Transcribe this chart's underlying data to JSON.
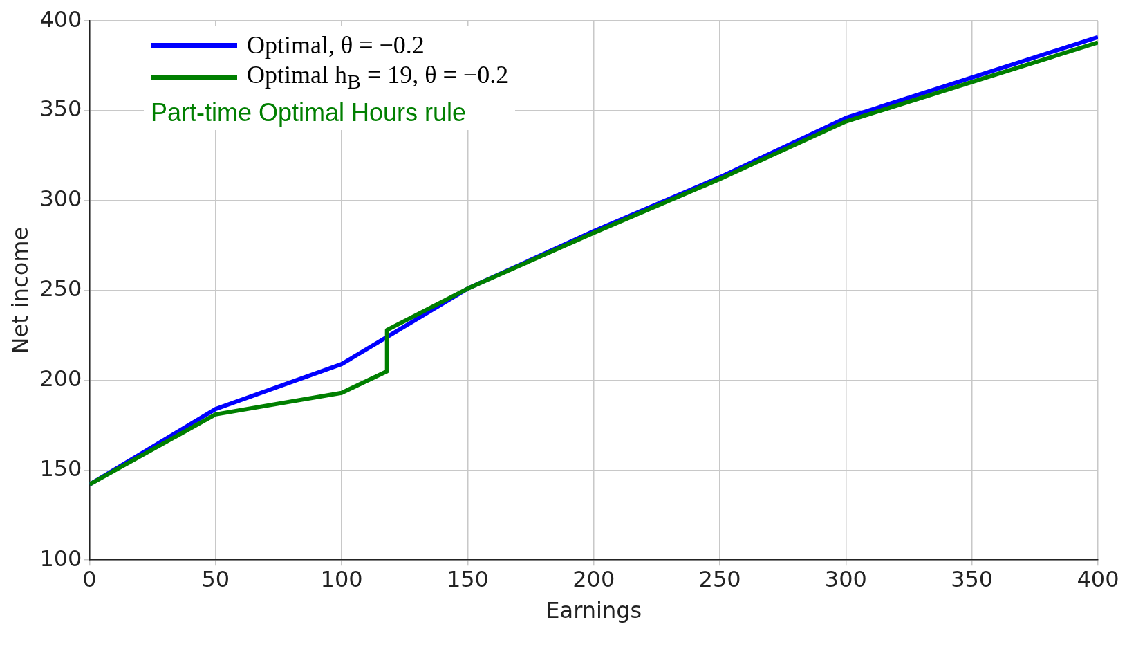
{
  "chart_data": {
    "type": "line",
    "xlabel": "Earnings",
    "ylabel": "Net income",
    "xlim": [
      0,
      400
    ],
    "xticks": [
      0,
      50,
      100,
      150,
      200,
      250,
      300,
      350,
      400
    ],
    "ylim": [
      100,
      400
    ],
    "yticks": [
      100,
      150,
      200,
      250,
      300,
      350,
      400
    ],
    "grid": true,
    "legend": "top left",
    "marker": "none",
    "line_style": "solid",
    "annotations": [
      "Part-time Optimal Hours rule"
    ],
    "series": [
      {
        "name": "Optimal, θ = −0.2",
        "color": "#0000ff",
        "x": [
          0,
          50,
          100,
          150,
          200,
          250,
          300,
          400
        ],
        "values": [
          142,
          184,
          209,
          251,
          283,
          313,
          346,
          391
        ]
      },
      {
        "name": "Optimal h$_{B}$ = 19, θ = −0.2",
        "color": "#007f00",
        "x": [
          0,
          50,
          100,
          118,
          118,
          150,
          200,
          250,
          300,
          400
        ],
        "values": [
          142,
          181,
          193,
          205,
          228,
          251,
          282,
          312,
          344,
          388
        ]
      }
    ]
  }
}
